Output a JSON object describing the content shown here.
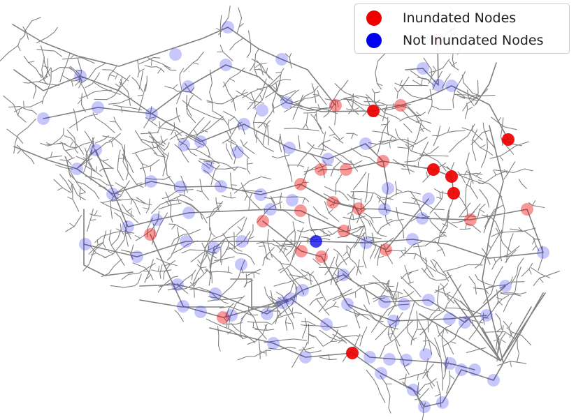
{
  "legend": {
    "items": [
      {
        "label": "Inundated Nodes",
        "color": "#ee0000"
      },
      {
        "label": "Not Inundated Nodes",
        "color": "#0000ee"
      }
    ]
  },
  "colors": {
    "edge": "#808080",
    "inundated": "#ee0000",
    "not_inundated": "#0000ee"
  },
  "map_data": {
    "inundated_nodes_strong": [
      [
        534,
        159
      ],
      [
        727,
        200
      ],
      [
        620,
        243
      ],
      [
        646,
        253
      ],
      [
        649,
        277
      ],
      [
        504,
        506
      ]
    ],
    "inundated_nodes_faint": [
      [
        480,
        151
      ],
      [
        573,
        151
      ],
      [
        548,
        231
      ],
      [
        459,
        243
      ],
      [
        495,
        243
      ],
      [
        430,
        264
      ],
      [
        476,
        290
      ],
      [
        513,
        299
      ],
      [
        430,
        302
      ],
      [
        376,
        317
      ],
      [
        492,
        331
      ],
      [
        431,
        360
      ],
      [
        460,
        368
      ],
      [
        552,
        358
      ],
      [
        215,
        336
      ],
      [
        319,
        455
      ],
      [
        673,
        315
      ],
      [
        754,
        300
      ],
      [
        626,
        57
      ]
    ],
    "not_inundated_nodes_strong": [
      [
        452,
        346
      ]
    ],
    "not_inundated_nodes_faint": [
      [
        326,
        39
      ],
      [
        251,
        78
      ],
      [
        403,
        85
      ],
      [
        323,
        93
      ],
      [
        115,
        109
      ],
      [
        269,
        124
      ],
      [
        140,
        154
      ],
      [
        217,
        163
      ],
      [
        410,
        147
      ],
      [
        375,
        158
      ],
      [
        62,
        170
      ],
      [
        349,
        178
      ],
      [
        287,
        203
      ],
      [
        263,
        208
      ],
      [
        414,
        212
      ],
      [
        469,
        228
      ],
      [
        523,
        206
      ],
      [
        137,
        215
      ],
      [
        110,
        242
      ],
      [
        216,
        260
      ],
      [
        258,
        268
      ],
      [
        316,
        267
      ],
      [
        161,
        278
      ],
      [
        373,
        279
      ],
      [
        297,
        240
      ],
      [
        340,
        218
      ],
      [
        183,
        325
      ],
      [
        224,
        315
      ],
      [
        270,
        305
      ],
      [
        346,
        346
      ],
      [
        387,
        300
      ],
      [
        418,
        287
      ],
      [
        550,
        300
      ],
      [
        555,
        270
      ],
      [
        604,
        313
      ],
      [
        613,
        285
      ],
      [
        590,
        343
      ],
      [
        524,
        348
      ],
      [
        122,
        350
      ],
      [
        196,
        368
      ],
      [
        306,
        355
      ],
      [
        266,
        346
      ],
      [
        345,
        379
      ],
      [
        491,
        394
      ],
      [
        433,
        416
      ],
      [
        404,
        434
      ],
      [
        254,
        408
      ],
      [
        308,
        421
      ],
      [
        331,
        452
      ],
      [
        262,
        439
      ],
      [
        287,
        447
      ],
      [
        382,
        450
      ],
      [
        416,
        428
      ],
      [
        550,
        433
      ],
      [
        578,
        436
      ],
      [
        613,
        430
      ],
      [
        563,
        460
      ],
      [
        643,
        457
      ],
      [
        665,
        462
      ],
      [
        723,
        410
      ],
      [
        777,
        362
      ],
      [
        696,
        452
      ],
      [
        497,
        436
      ],
      [
        467,
        465
      ],
      [
        391,
        492
      ],
      [
        437,
        512
      ],
      [
        529,
        512
      ],
      [
        557,
        515
      ],
      [
        581,
        516
      ],
      [
        609,
        508
      ],
      [
        644,
        521
      ],
      [
        679,
        530
      ],
      [
        706,
        545
      ],
      [
        545,
        535
      ],
      [
        591,
        559
      ],
      [
        607,
        583
      ],
      [
        633,
        577
      ],
      [
        660,
        530
      ],
      [
        646,
        123
      ],
      [
        627,
        122
      ],
      [
        605,
        98
      ]
    ],
    "edges_main": [
      [
        [
          18,
          35
        ],
        [
          60,
          60
        ],
        [
          110,
          80
        ],
        [
          170,
          95
        ],
        [
          230,
          75
        ],
        [
          290,
          55
        ],
        [
          326,
          39
        ],
        [
          370,
          70
        ],
        [
          403,
          85
        ],
        [
          440,
          100
        ],
        [
          480,
          151
        ]
      ],
      [
        [
          20,
          100
        ],
        [
          62,
          130
        ],
        [
          115,
          109
        ],
        [
          170,
          130
        ],
        [
          217,
          163
        ],
        [
          269,
          124
        ],
        [
          323,
          93
        ],
        [
          370,
          110
        ],
        [
          410,
          147
        ],
        [
          460,
          160
        ],
        [
          534,
          159
        ],
        [
          573,
          151
        ],
        [
          610,
          140
        ],
        [
          646,
          123
        ],
        [
          700,
          150
        ],
        [
          727,
          200
        ]
      ],
      [
        [
          20,
          210
        ],
        [
          70,
          230
        ],
        [
          110,
          242
        ],
        [
          161,
          278
        ],
        [
          216,
          260
        ],
        [
          258,
          268
        ],
        [
          316,
          267
        ],
        [
          373,
          279
        ],
        [
          430,
          264
        ],
        [
          476,
          290
        ],
        [
          513,
          299
        ],
        [
          550,
          300
        ],
        [
          604,
          313
        ],
        [
          673,
          315
        ],
        [
          754,
          300
        ],
        [
          777,
          362
        ]
      ],
      [
        [
          120,
          350
        ],
        [
          196,
          368
        ],
        [
          266,
          346
        ],
        [
          346,
          346
        ],
        [
          452,
          346
        ],
        [
          524,
          348
        ],
        [
          590,
          343
        ],
        [
          640,
          350
        ],
        [
          700,
          370
        ],
        [
          777,
          362
        ]
      ],
      [
        [
          200,
          410
        ],
        [
          254,
          408
        ],
        [
          308,
          421
        ],
        [
          382,
          450
        ],
        [
          433,
          416
        ],
        [
          491,
          394
        ],
        [
          550,
          433
        ],
        [
          613,
          430
        ],
        [
          665,
          462
        ],
        [
          723,
          410
        ]
      ],
      [
        [
          300,
          470
        ],
        [
          391,
          492
        ],
        [
          437,
          512
        ],
        [
          504,
          506
        ],
        [
          545,
          535
        ],
        [
          591,
          559
        ],
        [
          607,
          583
        ],
        [
          633,
          577
        ],
        [
          660,
          530
        ],
        [
          706,
          545
        ],
        [
          777,
          420
        ]
      ],
      [
        [
          62,
          170
        ],
        [
          140,
          154
        ],
        [
          217,
          163
        ],
        [
          287,
          203
        ],
        [
          349,
          178
        ],
        [
          414,
          212
        ],
        [
          469,
          228
        ],
        [
          523,
          206
        ],
        [
          548,
          231
        ],
        [
          620,
          243
        ],
        [
          646,
          253
        ],
        [
          649,
          277
        ]
      ],
      [
        [
          110,
          242
        ],
        [
          137,
          215
        ],
        [
          183,
          325
        ],
        [
          224,
          315
        ],
        [
          270,
          305
        ],
        [
          387,
          300
        ],
        [
          430,
          302
        ],
        [
          492,
          331
        ],
        [
          552,
          358
        ],
        [
          613,
          285
        ]
      ],
      [
        [
          215,
          336
        ],
        [
          262,
          439
        ],
        [
          319,
          455
        ],
        [
          331,
          452
        ],
        [
          416,
          428
        ],
        [
          467,
          465
        ],
        [
          529,
          512
        ],
        [
          581,
          516
        ],
        [
          644,
          521
        ],
        [
          679,
          530
        ]
      ],
      [
        [
          459,
          243
        ],
        [
          495,
          243
        ],
        [
          548,
          231
        ],
        [
          555,
          270
        ],
        [
          550,
          300
        ]
      ],
      [
        [
          376,
          317
        ],
        [
          431,
          360
        ],
        [
          460,
          368
        ],
        [
          497,
          436
        ],
        [
          563,
          460
        ],
        [
          643,
          457
        ],
        [
          696,
          452
        ]
      ],
      [
        [
          580,
          100
        ],
        [
          605,
          98
        ],
        [
          627,
          122
        ],
        [
          626,
          57
        ],
        [
          650,
          40
        ]
      ],
      [
        [
          680,
          150
        ],
        [
          700,
          120
        ],
        [
          710,
          90
        ]
      ],
      [
        [
          700,
          180
        ],
        [
          720,
          260
        ],
        [
          700,
          340
        ],
        [
          690,
          400
        ],
        [
          720,
          520
        ]
      ],
      [
        [
          640,
          390
        ],
        [
          716,
          517
        ],
        [
          780,
          420
        ]
      ],
      [
        [
          650,
          430
        ],
        [
          716,
          517
        ],
        [
          760,
          440
        ]
      ],
      [
        [
          600,
          450
        ],
        [
          716,
          517
        ],
        [
          690,
          470
        ]
      ],
      [
        [
          120,
          300
        ],
        [
          120,
          380
        ],
        [
          150,
          395
        ],
        [
          190,
          390
        ]
      ],
      [
        [
          330,
          400
        ],
        [
          360,
          400
        ],
        [
          360,
          440
        ],
        [
          390,
          440
        ]
      ],
      [
        [
          200,
          430
        ],
        [
          260,
          440
        ],
        [
          320,
          440
        ]
      ]
    ],
    "branch_seed": 7,
    "branch_count": 650
  }
}
